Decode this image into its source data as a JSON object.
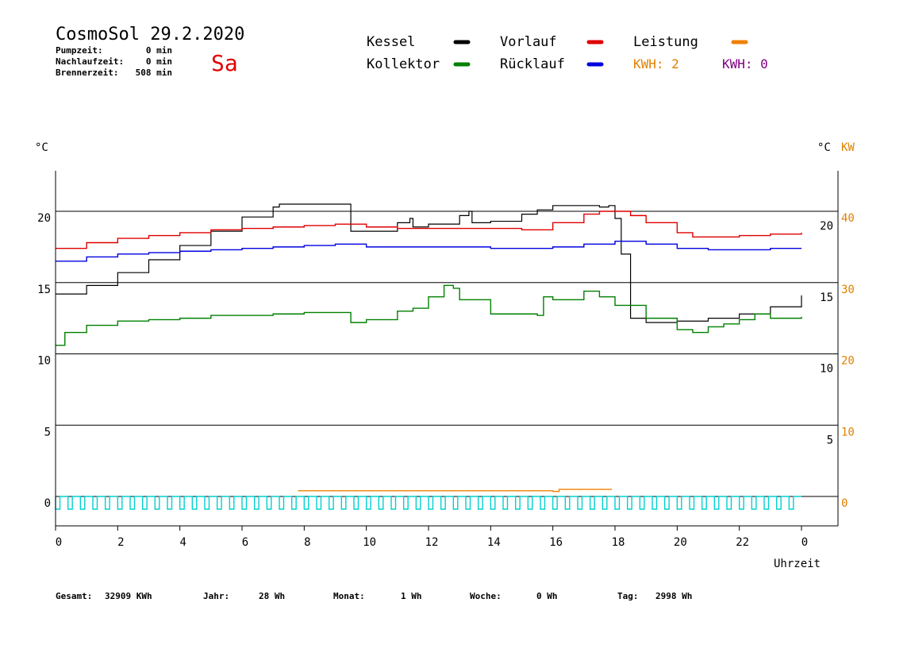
{
  "header": {
    "title": "CosmoSol 29.2.2020",
    "day": "Sa",
    "stats": [
      {
        "label": "Pumpzeit:",
        "value": "0 min"
      },
      {
        "label": "Nachlaufzeit:",
        "value": "0 min"
      },
      {
        "label": "Brennerzeit:",
        "value": "508 min"
      }
    ]
  },
  "legend": {
    "kessel": {
      "label": "Kessel",
      "color": "#000000"
    },
    "vorlauf": {
      "label": "Vorlauf",
      "color": "#e00000"
    },
    "leistung": {
      "label": "Leistung",
      "color": "#f08000"
    },
    "kollektor": {
      "label": "Kollektor",
      "color": "#008000"
    },
    "ruecklauf": {
      "label": "Rücklauf",
      "color": "#0000e0"
    },
    "kwh1": {
      "label": "KWH: 2",
      "color": "#e08000"
    },
    "kwh2": {
      "label": "KWH: 0",
      "color": "#800080"
    }
  },
  "axes": {
    "left_unit": "°C",
    "right_unit": "°C",
    "right_unit2": "KW",
    "xlabel": "Uhrzeit"
  },
  "footer": [
    {
      "label": "Gesamt:",
      "value": "32909 KWh"
    },
    {
      "label": "Jahr:",
      "value": "28 Wh"
    },
    {
      "label": "Monat:",
      "value": "1 Wh"
    },
    {
      "label": "Woche:",
      "value": "0 Wh"
    },
    {
      "label": "Tag:",
      "value": "2998 Wh"
    }
  ],
  "chart_data": {
    "type": "line",
    "xlim": [
      0,
      24
    ],
    "ylim": [
      -1.5,
      23
    ],
    "y2lim": [
      -3,
      46
    ],
    "x_ticks": [
      "0",
      "2",
      "4",
      "6",
      "8",
      "10",
      "12",
      "14",
      "16",
      "18",
      "20",
      "22",
      "0"
    ],
    "y_ticks_left": [
      "0",
      "5",
      "10",
      "15",
      "20"
    ],
    "y_ticks_right_c": [
      "5",
      "10",
      "15",
      "20"
    ],
    "y_ticks_right_kw": [
      "0",
      "10",
      "20",
      "30",
      "40"
    ],
    "grid": true,
    "series": [
      {
        "name": "Kessel",
        "color": "#000000",
        "x": [
          0,
          1,
          2,
          3,
          4,
          5,
          6,
          7,
          7.2,
          9.2,
          9.5,
          10,
          11,
          11.4,
          11.5,
          12,
          13,
          13.3,
          13.4,
          14,
          15,
          15.5,
          16,
          17,
          17.5,
          17.8,
          18,
          18.2,
          18.5,
          19,
          20,
          21,
          22,
          23,
          24
        ],
        "y": [
          14.2,
          14.8,
          15.7,
          16.6,
          17.6,
          18.6,
          19.6,
          20.3,
          20.5,
          20.5,
          18.6,
          18.6,
          19.2,
          19.5,
          18.9,
          19.1,
          19.7,
          20,
          19.2,
          19.3,
          19.8,
          20.1,
          20.4,
          20.4,
          20.3,
          20.4,
          19.5,
          17,
          12.5,
          12.2,
          12.3,
          12.5,
          12.8,
          13.3,
          14.1
        ]
      },
      {
        "name": "Vorlauf",
        "color": "#e00000",
        "x": [
          0,
          1,
          2,
          3,
          4,
          5,
          6,
          7,
          8,
          9,
          10,
          11,
          12,
          13,
          14,
          15,
          15.8,
          16,
          17,
          17.5,
          18,
          18.5,
          19,
          20,
          20.5,
          21,
          22,
          23,
          24
        ],
        "y": [
          17.4,
          17.8,
          18.1,
          18.3,
          18.5,
          18.7,
          18.8,
          18.9,
          19.0,
          19.1,
          18.9,
          18.8,
          18.8,
          18.8,
          18.8,
          18.7,
          18.7,
          19.2,
          19.8,
          20.0,
          20.0,
          19.7,
          19.2,
          18.5,
          18.2,
          18.2,
          18.3,
          18.4,
          18.5
        ]
      },
      {
        "name": "Rücklauf",
        "color": "#0000e0",
        "x": [
          0,
          1,
          2,
          3,
          4,
          5,
          6,
          7,
          8,
          9,
          10,
          11,
          12,
          13,
          14,
          15,
          16,
          17,
          18,
          19,
          20,
          21,
          22,
          23,
          24
        ],
        "y": [
          16.5,
          16.8,
          17.0,
          17.1,
          17.2,
          17.3,
          17.4,
          17.5,
          17.6,
          17.7,
          17.5,
          17.5,
          17.5,
          17.5,
          17.4,
          17.4,
          17.5,
          17.7,
          17.9,
          17.7,
          17.4,
          17.3,
          17.3,
          17.4,
          17.4
        ]
      },
      {
        "name": "Kollektor",
        "color": "#008000",
        "x": [
          0,
          0.3,
          1,
          2,
          3,
          4,
          5,
          6,
          7,
          8,
          9,
          9.5,
          10,
          11,
          11.5,
          12,
          12.5,
          12.8,
          13,
          14,
          15,
          15.5,
          15.7,
          16,
          16.5,
          17,
          17.5,
          18,
          19,
          20,
          20.5,
          21,
          21.5,
          22,
          22.5,
          23,
          24
        ],
        "y": [
          10.6,
          11.5,
          12.0,
          12.3,
          12.4,
          12.5,
          12.7,
          12.7,
          12.8,
          12.9,
          12.9,
          12.2,
          12.4,
          13.0,
          13.2,
          14.0,
          14.8,
          14.6,
          13.8,
          12.8,
          12.8,
          12.7,
          14.0,
          13.8,
          13.8,
          14.4,
          14.0,
          13.4,
          12.5,
          11.7,
          11.5,
          11.9,
          12.1,
          12.4,
          12.8,
          12.5,
          12.6
        ]
      },
      {
        "name": "Leistung",
        "color": "#f08000",
        "x": [
          7.8,
          8.1,
          8.8,
          9.3,
          16.0,
          16.2,
          17.0,
          17.9
        ],
        "y": [
          0.4,
          0.4,
          0.4,
          0.4,
          0.35,
          0.5,
          0.5,
          0.5
        ]
      }
    ],
    "pump_pulses": {
      "color": "#00d0d0",
      "x": [
        0.0,
        0.4,
        0.8,
        1.2,
        1.6,
        2.0,
        2.4,
        2.8,
        3.2,
        3.6,
        4.0,
        4.4,
        4.8,
        5.2,
        5.6,
        6.0,
        6.4,
        6.8,
        7.2,
        7.6,
        8.0,
        8.4,
        8.8,
        9.2,
        9.6,
        10.0,
        10.4,
        10.8,
        11.2,
        11.6,
        12.0,
        12.4,
        12.8,
        13.2,
        13.6,
        14.0,
        14.4,
        14.8,
        15.2,
        15.6,
        16.0,
        16.4,
        16.8,
        17.2,
        17.6,
        18.0,
        18.4,
        18.8,
        19.2,
        19.6,
        20.0,
        20.4,
        20.8,
        21.2,
        21.6,
        22.0,
        22.4,
        22.8,
        23.2,
        23.6
      ]
    }
  }
}
